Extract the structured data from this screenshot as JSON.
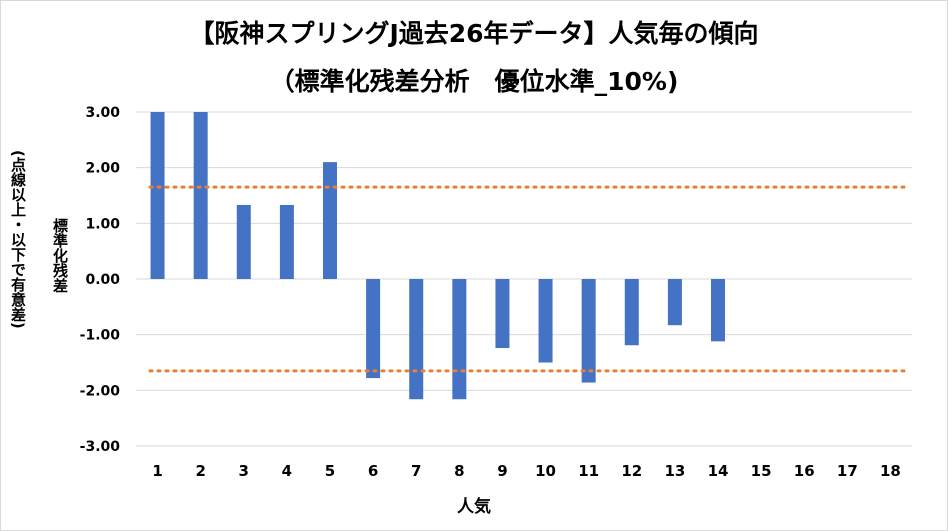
{
  "chart_data": {
    "type": "bar",
    "title": "【阪神スプリングJ過去26年データ】人気毎の傾向",
    "subtitle": "（標準化残差分析　優位水準_10%)",
    "xlabel": "人気",
    "ylabel": "標準化残差",
    "ylabel_note": "(点線以上・以下で有意差)",
    "ylim": [
      -3,
      3
    ],
    "yticks": [
      "3.00",
      "2.00",
      "1.00",
      "0.00",
      "-1.00",
      "-2.00",
      "-3.00"
    ],
    "categories": [
      "1",
      "2",
      "3",
      "4",
      "5",
      "6",
      "7",
      "8",
      "9",
      "10",
      "11",
      "12",
      "13",
      "14",
      "15",
      "16",
      "17",
      "18"
    ],
    "values": [
      3.0,
      3.0,
      1.33,
      1.33,
      2.1,
      -1.78,
      -2.16,
      -2.16,
      -1.24,
      -1.5,
      -1.86,
      -1.19,
      -0.83,
      -1.12,
      0,
      0,
      0,
      0
    ],
    "thresholds": [
      1.65,
      -1.65
    ],
    "bar_color": "#4472c4",
    "threshold_color": "#ed7d31",
    "grid": true,
    "legend": "none"
  }
}
